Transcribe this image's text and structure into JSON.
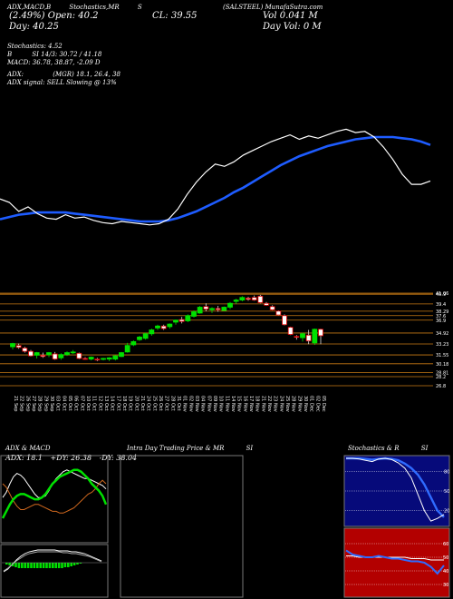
{
  "header": {
    "tags": [
      "(SALSTEEL) MunafaSutra.com",
      "ADX,MACD,B",
      "Stochastics,MR",
      "S"
    ],
    "line1_left": "(2.49%)    Open: 40.2",
    "close_label": "CL: 39.55",
    "day_label": "Day: 40.25",
    "vol_label": "Vol 0.041 M",
    "dayvol_label": "Day Vol: 0  M"
  },
  "stats": {
    "stochastics": "Stochastics: 4.52",
    "si": "SI 14/3: 30.72 / 41.18",
    "b": "B",
    "macd": "MACD: 36.78, 38.87, -2.09 D",
    "adx": "ADX:",
    "mgr": "(MGR) 18.1, 26.4, 38",
    "adx_signal": "ADX  signal: SELL  Slowing @ 13%"
  },
  "colors": {
    "up": "#00e000",
    "down": "#e00000",
    "ma_white": "#ffffff",
    "ma_blue": "#1e5cff",
    "grid": "#c87a14"
  },
  "chart_data": [
    {
      "type": "line",
      "series": [
        {
          "values": [
            34.9,
            34.6,
            33.8,
            34.2,
            33.6,
            33.2,
            33.1,
            33.5,
            33.2,
            33.3,
            33.0,
            32.8,
            32.7,
            32.9,
            32.8,
            32.7,
            32.6,
            32.7,
            33.1,
            34.0,
            35.3,
            36.4,
            37.3,
            38.0,
            37.8,
            38.2,
            38.8,
            39.2,
            39.6,
            40.0,
            40.3,
            40.6,
            40.2,
            40.5,
            40.3,
            40.6,
            40.9,
            41.1,
            40.8,
            40.9,
            40.4,
            39.5,
            38.4,
            37.1,
            36.2,
            36.2,
            36.5
          ]
        },
        {
          "values": [
            33.1,
            33.3,
            33.5,
            33.6,
            33.7,
            33.7,
            33.7,
            33.7,
            33.6,
            33.5,
            33.4,
            33.3,
            33.2,
            33.1,
            33.0,
            32.9,
            32.9,
            32.9,
            33.0,
            33.2,
            33.5,
            33.8,
            34.2,
            34.6,
            35.0,
            35.5,
            35.9,
            36.4,
            36.9,
            37.4,
            37.9,
            38.3,
            38.7,
            39.0,
            39.3,
            39.6,
            39.8,
            40.0,
            40.2,
            40.3,
            40.4,
            40.4,
            40.4,
            40.3,
            40.2,
            40.0,
            39.7
          ]
        }
      ]
    },
    {
      "type": "candlestick",
      "x": [
        "21 Sep",
        "22 Sep",
        "26 Sep",
        "27 Sep",
        "28 Sep",
        "29 Sep",
        "30 Sep",
        "03 Oct",
        "04 Oct",
        "05 Oct",
        "06 Oct",
        "07 Oct",
        "10 Oct",
        "11 Oct",
        "12 Oct",
        "13 Oct",
        "14 Oct",
        "17 Oct",
        "18 Oct",
        "19 Oct",
        "20 Oct",
        "21 Oct",
        "24 Oct",
        "25 Oct",
        "26 Oct",
        "27 Oct",
        "28 Oct",
        "31 Oct",
        "01 Nov",
        "02 Nov",
        "03 Nov",
        "04 Nov",
        "07 Nov",
        "09 Nov",
        "10 Nov",
        "11 Nov",
        "14 Nov",
        "15 Nov",
        "16 Nov",
        "17 Nov",
        "18 Nov",
        "21 Nov",
        "22 Nov",
        "23 Nov",
        "24 Nov",
        "25 Nov",
        "28 Nov",
        "29 Nov",
        "30 Nov",
        "01 Dec",
        "02 Dec",
        "05 Dec"
      ],
      "ohlc": [
        [
          32.8,
          33.4,
          32.4,
          33.3
        ],
        [
          33.0,
          33.3,
          32.5,
          32.7
        ],
        [
          32.6,
          32.8,
          31.9,
          32.1
        ],
        [
          32.1,
          32.3,
          31.3,
          31.4
        ],
        [
          31.5,
          32.0,
          31.0,
          31.9
        ],
        [
          31.5,
          31.9,
          31.1,
          31.3
        ],
        [
          31.6,
          32.0,
          31.2,
          31.9
        ],
        [
          31.7,
          32.0,
          30.8,
          30.9
        ],
        [
          31.1,
          31.8,
          30.8,
          31.6
        ],
        [
          31.6,
          32.1,
          31.4,
          31.9
        ],
        [
          31.9,
          32.3,
          31.7,
          32.0
        ],
        [
          31.8,
          31.9,
          30.9,
          31.0
        ],
        [
          31.0,
          31.2,
          30.8,
          30.9
        ],
        [
          30.9,
          31.3,
          30.7,
          31.2
        ],
        [
          30.9,
          31.1,
          30.6,
          30.8
        ],
        [
          30.9,
          31.1,
          30.7,
          31.0
        ],
        [
          30.9,
          31.2,
          30.6,
          31.1
        ],
        [
          30.9,
          31.5,
          30.7,
          31.4
        ],
        [
          31.3,
          32.0,
          31.2,
          31.9
        ],
        [
          32.0,
          33.4,
          31.9,
          33.0
        ],
        [
          33.1,
          33.8,
          32.9,
          33.6
        ],
        [
          33.9,
          34.5,
          33.7,
          34.3
        ],
        [
          34.1,
          35.0,
          33.9,
          34.8
        ],
        [
          34.8,
          35.6,
          34.5,
          35.4
        ],
        [
          35.7,
          36.2,
          35.4,
          36.0
        ],
        [
          36.0,
          36.2,
          35.4,
          35.6
        ],
        [
          35.9,
          36.4,
          35.6,
          36.3
        ],
        [
          36.6,
          37.0,
          36.2,
          36.9
        ],
        [
          37.0,
          37.4,
          36.4,
          36.7
        ],
        [
          36.8,
          37.8,
          36.6,
          37.6
        ],
        [
          37.5,
          38.4,
          37.3,
          38.2
        ],
        [
          38.0,
          39.1,
          37.9,
          38.9
        ],
        [
          39.0,
          39.5,
          38.3,
          38.6
        ],
        [
          38.5,
          38.9,
          38.0,
          38.7
        ],
        [
          38.7,
          39.1,
          38.2,
          38.5
        ],
        [
          38.4,
          39.0,
          38.3,
          38.9
        ],
        [
          38.9,
          39.7,
          38.6,
          39.5
        ],
        [
          39.8,
          40.2,
          39.4,
          40.0
        ],
        [
          40.0,
          40.6,
          39.8,
          40.4
        ],
        [
          40.3,
          40.5,
          39.9,
          40.1
        ],
        [
          40.4,
          40.7,
          39.9,
          40.0
        ],
        [
          40.6,
          40.8,
          39.5,
          39.6
        ],
        [
          39.5,
          39.7,
          39.1,
          39.2
        ],
        [
          39.0,
          39.2,
          38.4,
          38.5
        ],
        [
          38.3,
          38.4,
          37.6,
          37.7
        ],
        [
          37.6,
          37.8,
          36.1,
          36.2
        ],
        [
          35.8,
          35.9,
          34.6,
          34.7
        ],
        [
          34.4,
          34.6,
          33.9,
          34.3
        ],
        [
          34.2,
          35.0,
          33.6,
          34.8
        ],
        [
          34.6,
          35.4,
          33.2,
          33.7
        ],
        [
          33.4,
          35.6,
          33.1,
          35.5
        ],
        [
          35.5,
          35.6,
          33.2,
          34.5
        ]
      ],
      "yticks": [
        41.06,
        40.9,
        39.4,
        38.29,
        37.6,
        36.9,
        34.92,
        33.23,
        31.55,
        30.18,
        28.81,
        28.2,
        26.8
      ]
    },
    {
      "type": "line",
      "title": "ADX  & MACD",
      "stat_labels": [
        "ADX: 18.1",
        "+DY: 26.38",
        "-DY: 38.04"
      ],
      "series": [
        {
          "values": [
            22,
            25,
            30,
            34,
            36,
            35,
            33,
            30,
            27,
            24,
            22,
            22,
            23,
            26,
            30,
            33,
            35,
            37,
            38,
            37,
            36,
            35,
            34,
            33,
            33,
            32,
            31,
            30,
            29,
            27
          ]
        },
        {
          "values": [
            30,
            28,
            24,
            20,
            17,
            15,
            15,
            16,
            17,
            18,
            18,
            17,
            16,
            15,
            14,
            14,
            13,
            13,
            14,
            15,
            16,
            18,
            20,
            22,
            24,
            25,
            27,
            30,
            32,
            30
          ]
        },
        {
          "values": [
            10,
            14,
            18,
            21,
            23,
            24,
            24,
            23,
            22,
            21,
            21,
            22,
            24,
            27,
            30,
            32,
            34,
            35,
            36,
            37,
            38,
            38,
            37,
            35,
            33,
            30,
            28,
            26,
            23,
            18
          ]
        }
      ]
    },
    {
      "type": "line",
      "title": "Intra Day Trading Price  & MR",
      "title_suffix": "SI",
      "series": []
    },
    {
      "type": "line",
      "title": "Stochastics & R",
      "title_suffix": "SI",
      "yticks": [
        80,
        50,
        20
      ],
      "series": [
        {
          "values": [
            100,
            100,
            99,
            97,
            95,
            99,
            100,
            98,
            93,
            85,
            70,
            45,
            20,
            4,
            8,
            14
          ]
        },
        {
          "values": [
            100,
            100,
            100,
            99,
            98,
            99,
            100,
            99,
            97,
            92,
            85,
            75,
            60,
            40,
            20,
            10
          ]
        }
      ]
    },
    {
      "type": "line",
      "yticks": [
        60,
        50,
        40,
        30
      ],
      "series": [
        {
          "values": [
            55,
            52,
            51,
            50,
            50,
            51,
            50,
            49,
            49,
            48,
            47,
            47,
            46,
            43,
            38,
            44
          ]
        },
        {
          "values": [
            51,
            51,
            50,
            50,
            50,
            50,
            50,
            50,
            50,
            50,
            49,
            49,
            49,
            48,
            48,
            48
          ]
        }
      ]
    }
  ]
}
